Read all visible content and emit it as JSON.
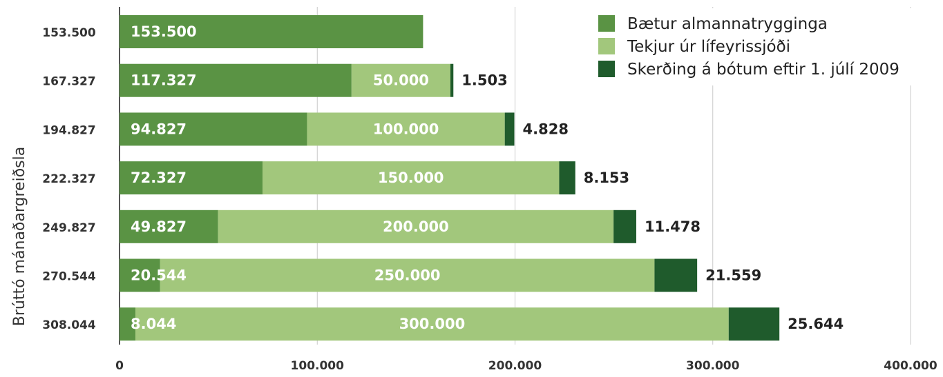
{
  "chart_data": {
    "type": "bar",
    "orientation": "horizontal",
    "stacked": true,
    "ylabel": "Brúttó mánaðargreiðsla",
    "xlim": [
      0,
      400000
    ],
    "x_ticks": [
      "0",
      "100.000",
      "200.000",
      "300.000",
      "400.000"
    ],
    "categories": [
      "153.500",
      "167.327",
      "194.827",
      "222.327",
      "249.827",
      "270.544",
      "308.044"
    ],
    "series": [
      {
        "name": "Bætur almannatrygginga",
        "color": "#5a9344",
        "values": [
          153500,
          117327,
          94827,
          72327,
          49827,
          20544,
          8044
        ],
        "labels": [
          "153.500",
          "117.327",
          "94.827",
          "72.327",
          "49.827",
          "20.544",
          "8.044"
        ]
      },
      {
        "name": "Tekjur úr lífeyrissjóði",
        "color": "#a2c77c",
        "values": [
          0,
          50000,
          100000,
          150000,
          200000,
          250000,
          300000
        ],
        "labels": [
          "",
          "50.000",
          "100.000",
          "150.000",
          "200.000",
          "250.000",
          "300.000"
        ]
      },
      {
        "name": "Skerðing á bótum eftir 1. júlí 2009",
        "color": "#1f5b2c",
        "values": [
          0,
          1503,
          4828,
          8153,
          11478,
          21559,
          25644
        ],
        "labels": [
          "",
          "1.503",
          "4.828",
          "8.153",
          "11.478",
          "21.559",
          "25.644"
        ]
      }
    ],
    "grid": true,
    "legend": "top-right"
  }
}
